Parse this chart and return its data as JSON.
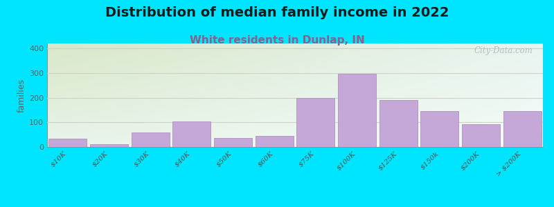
{
  "title": "Distribution of median family income in 2022",
  "subtitle": "White residents in Dunlap, IN",
  "ylabel": "families",
  "categories": [
    "$10K",
    "$20K",
    "$30K",
    "$40K",
    "$50K",
    "$60K",
    "$75K",
    "$100K",
    "$125K",
    "$150k",
    "$200K",
    "> $200K"
  ],
  "values": [
    35,
    10,
    58,
    105,
    37,
    45,
    200,
    298,
    190,
    147,
    92,
    147
  ],
  "bar_color": "#c5a8d8",
  "bar_edge_color": "#b090be",
  "ylim": [
    0,
    420
  ],
  "yticks": [
    0,
    100,
    200,
    300,
    400
  ],
  "title_fontsize": 14,
  "subtitle_fontsize": 11,
  "subtitle_color": "#8B5E8B",
  "ylabel_fontsize": 9,
  "background_outer": "#00e5ff",
  "bg_color_topleft": "#d8e8c8",
  "bg_color_bottomright": "#f0f8f8",
  "watermark": "City-Data.com",
  "watermark_color": "#a8b8b8",
  "tick_label_color": "#505050",
  "ytick_color": "#606060",
  "grid_color": "#d0d0c8",
  "spine_color": "#909090"
}
